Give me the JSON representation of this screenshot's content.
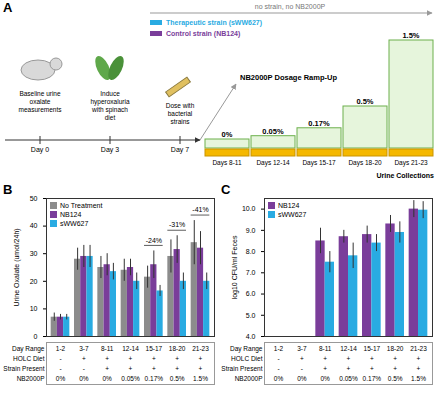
{
  "diagram": {
    "panel_label": "A",
    "legend": [
      {
        "text": "Therapeutic strain (sWW627)",
        "color": "#29abe2"
      },
      {
        "text": "Control strain (NB124)",
        "color": "#7a3d9a"
      }
    ],
    "top_arrow": "no strain, no NB2000P",
    "timeline": [
      {
        "day": "Day 0",
        "event": "Baseline urine oxalate measurements"
      },
      {
        "day": "Day 3",
        "event": "Induce hyperoxaluria with spinach diet"
      },
      {
        "day": "Day 7",
        "event": "Dose with bacterial strains"
      }
    ],
    "ramp_title": "NB2000P Dosage Ramp-Up",
    "ramp": [
      {
        "dose": {
          "value": 0,
          "label": "0%"
        },
        "days": "Days 8-11"
      },
      {
        "dose": {
          "value": 0.05,
          "label": "0.05%"
        },
        "days": "Days 12-14"
      },
      {
        "dose": {
          "value": 0.17,
          "label": "0.17%"
        },
        "days": "Days 15-17"
      },
      {
        "dose": {
          "value": 0.5,
          "label": "0.5%"
        },
        "days": "Days 18-20"
      },
      {
        "dose": {
          "value": 1.5,
          "label": "1.5%"
        },
        "days": "Days 21-23"
      }
    ],
    "collections_label": "Urine Collections"
  },
  "chart_data": [
    {
      "type": "bar",
      "panel_label": "B",
      "ylabel": "Urine Oxalate (umol/24h)",
      "categories": [
        "1-2",
        "3-7",
        "8-11",
        "12-14",
        "15-17",
        "18-20",
        "21-23"
      ],
      "categories_label": "Day Range",
      "series": [
        {
          "name": "No Treatment",
          "color": "#8c8c8c",
          "values": [
            7,
            28,
            25,
            24,
            21.5,
            29,
            34
          ],
          "errors": [
            1.5,
            4,
            4,
            4,
            4,
            6,
            8
          ]
        },
        {
          "name": "NB124",
          "color": "#7a3d9a",
          "values": [
            7,
            29,
            26,
            25,
            26,
            31.5,
            32
          ],
          "errors": [
            1,
            4,
            4,
            3,
            5,
            5,
            6
          ]
        },
        {
          "name": "sWW627",
          "color": "#29abe2",
          "values": [
            7,
            29,
            23.5,
            20,
            16.5,
            20,
            20
          ],
          "errors": [
            1,
            4,
            3,
            3,
            2,
            3,
            3
          ]
        }
      ],
      "ylim": [
        0,
        50
      ],
      "yticks": [
        0,
        10,
        20,
        30,
        40,
        50
      ],
      "legend": "top-left",
      "annotations": [
        {
          "category": "15-17",
          "text": "-24%"
        },
        {
          "category": "18-20",
          "text": "-31%"
        },
        {
          "category": "21-23",
          "text": "-41%"
        }
      ],
      "table": [
        {
          "label": "HOLC Diet",
          "values": [
            "-",
            "+",
            "+",
            "+",
            "+",
            "+",
            "+"
          ]
        },
        {
          "label": "Strain Present",
          "values": [
            "-",
            "-",
            "+",
            "+",
            "+",
            "+",
            "+"
          ]
        },
        {
          "label": "NB2000P",
          "values": [
            "0%",
            "0%",
            "0%",
            "0.05%",
            "0.17%",
            "0.5%",
            "1.5%"
          ]
        }
      ]
    },
    {
      "type": "bar",
      "panel_label": "C",
      "ylabel": "log10 CFU/ml Feces",
      "categories": [
        "1-2",
        "3-7",
        "8-11",
        "12-14",
        "15-17",
        "18-20",
        "21-23"
      ],
      "categories_label": "Day Range",
      "series": [
        {
          "name": "NB124",
          "color": "#7a3d9a",
          "values": [
            null,
            null,
            8.5,
            8.7,
            8.8,
            9.3,
            10.0
          ],
          "errors": [
            null,
            null,
            0.6,
            0.3,
            0.4,
            0.4,
            0.4
          ]
        },
        {
          "name": "sWW627",
          "color": "#29abe2",
          "values": [
            null,
            null,
            7.5,
            7.8,
            8.4,
            8.9,
            9.95
          ],
          "errors": [
            null,
            null,
            0.5,
            0.6,
            0.4,
            0.5,
            0.4
          ]
        }
      ],
      "ylim": [
        4,
        10.5
      ],
      "yticks": [
        4,
        5,
        6,
        7,
        8,
        9,
        10
      ],
      "legend": "top-left",
      "table": [
        {
          "label": "HOLC Diet",
          "values": [
            "-",
            "+",
            "+",
            "+",
            "+",
            "+",
            "+"
          ]
        },
        {
          "label": "Strain Present",
          "values": [
            "-",
            "-",
            "+",
            "+",
            "+",
            "+",
            "+"
          ]
        },
        {
          "label": "NB2000P",
          "values": [
            "0%",
            "0%",
            "0%",
            "0.05%",
            "0.17%",
            "0.5%",
            "1.5%"
          ]
        }
      ]
    }
  ]
}
